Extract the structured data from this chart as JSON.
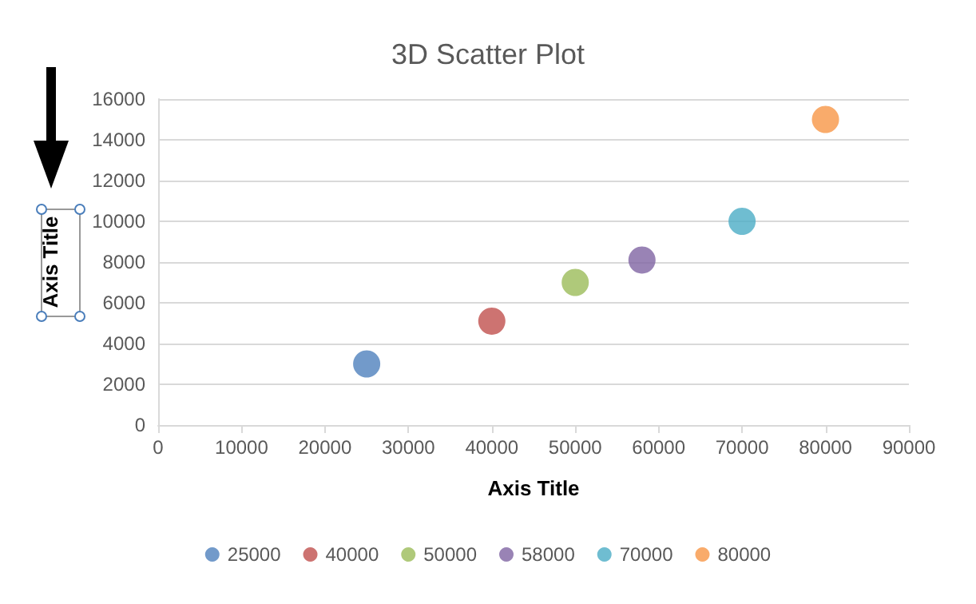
{
  "chart_data": {
    "type": "scatter",
    "title": "3D Scatter Plot",
    "xlabel": "Axis Title",
    "ylabel": "Axis Title",
    "xlim": [
      0,
      90000
    ],
    "xticks": [
      0,
      10000,
      20000,
      30000,
      40000,
      50000,
      60000,
      70000,
      80000,
      90000
    ],
    "ylim": [
      0,
      16000
    ],
    "yticks": [
      0,
      2000,
      4000,
      6000,
      8000,
      10000,
      12000,
      14000,
      16000
    ],
    "grid": "y",
    "legend": "bottom",
    "marker": "circle",
    "series": [
      {
        "name": "25000",
        "color": "#4f81bd",
        "x": [
          25000
        ],
        "values": [
          3000
        ]
      },
      {
        "name": "40000",
        "color": "#c0504d",
        "x": [
          40000
        ],
        "values": [
          5100
        ]
      },
      {
        "name": "50000",
        "color": "#9bbb59",
        "x": [
          50000
        ],
        "values": [
          7000
        ]
      },
      {
        "name": "58000",
        "color": "#8064a2",
        "x": [
          58000
        ],
        "values": [
          8100
        ]
      },
      {
        "name": "70000",
        "color": "#4bacc6",
        "x": [
          70000
        ],
        "values": [
          10000
        ]
      },
      {
        "name": "80000",
        "color": "#f79646",
        "x": [
          80000
        ],
        "values": [
          15000
        ]
      }
    ]
  }
}
